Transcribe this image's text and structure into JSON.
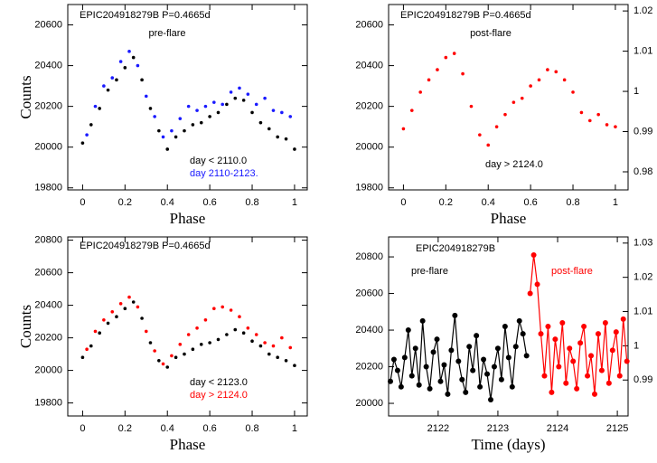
{
  "chart_data": [
    {
      "type": "scatter",
      "title": "EPIC204918279B P=0.4665d",
      "annotations": [
        "pre-flare"
      ],
      "xlabel": "Phase",
      "ylabel": "Counts",
      "xlim": [
        -0.07,
        1.06
      ],
      "ylim": [
        19790,
        20700
      ],
      "xticks": [
        0,
        0.2,
        0.4,
        0.6,
        0.8,
        1
      ],
      "yticks": [
        19800,
        20000,
        20200,
        20400,
        20600
      ],
      "series": [
        {
          "name": "day < 2110.0",
          "color": "#000000",
          "x": [
            0,
            0.04,
            0.08,
            0.12,
            0.16,
            0.2,
            0.24,
            0.28,
            0.32,
            0.36,
            0.4,
            0.44,
            0.48,
            0.52,
            0.56,
            0.6,
            0.64,
            0.68,
            0.72,
            0.76,
            0.8,
            0.84,
            0.88,
            0.92,
            0.96,
            1
          ],
          "values": [
            20020,
            20110,
            20190,
            20280,
            20330,
            20390,
            20440,
            20330,
            20190,
            20080,
            19990,
            20050,
            20080,
            20110,
            20120,
            20150,
            20170,
            20210,
            20240,
            20230,
            20170,
            20120,
            20090,
            20050,
            20040,
            19990
          ]
        },
        {
          "name": "day 2110-2123.",
          "color": "#1a1aff",
          "x": [
            0.02,
            0.06,
            0.1,
            0.14,
            0.18,
            0.22,
            0.26,
            0.3,
            0.34,
            0.38,
            0.42,
            0.46,
            0.5,
            0.54,
            0.58,
            0.62,
            0.66,
            0.7,
            0.74,
            0.78,
            0.82,
            0.86,
            0.9,
            0.94,
            0.98
          ],
          "values": [
            20060,
            20200,
            20300,
            20340,
            20420,
            20470,
            20400,
            20250,
            20150,
            20050,
            20080,
            20140,
            20200,
            20180,
            20200,
            20220,
            20210,
            20270,
            20290,
            20260,
            20210,
            20240,
            20180,
            20170,
            20150
          ]
        }
      ]
    },
    {
      "type": "scatter",
      "title": "EPIC204918279B P=0.4665d",
      "annotations": [
        "post-flare",
        "day > 2124.0"
      ],
      "xlabel": "Phase",
      "xlim": [
        -0.07,
        1.06
      ],
      "ylim": [
        19790,
        20700
      ],
      "xticks": [
        0,
        0.2,
        0.4,
        0.6,
        0.8,
        1
      ],
      "yticks": [
        19800,
        20000,
        20200,
        20400,
        20600
      ],
      "y2lim": [
        0.9755,
        1.0216
      ],
      "y2ticks": [
        0.98,
        0.99,
        1,
        1.01,
        1.02
      ],
      "series": [
        {
          "color": "#ff0000",
          "x": [
            0,
            0.04,
            0.08,
            0.12,
            0.16,
            0.2,
            0.24,
            0.28,
            0.32,
            0.36,
            0.4,
            0.44,
            0.48,
            0.52,
            0.56,
            0.6,
            0.64,
            0.68,
            0.72,
            0.76,
            0.8,
            0.84,
            0.88,
            0.92,
            0.96,
            1
          ],
          "values": [
            20090,
            20180,
            20270,
            20330,
            20380,
            20440,
            20460,
            20360,
            20200,
            20060,
            20010,
            20100,
            20160,
            20220,
            20240,
            20300,
            20330,
            20380,
            20370,
            20330,
            20270,
            20170,
            20130,
            20160,
            20110,
            20100
          ]
        }
      ]
    },
    {
      "type": "scatter",
      "title": "EPIC204918279B P=0.4665d",
      "xlabel": "Phase",
      "ylabel": "Counts",
      "xlim": [
        -0.07,
        1.06
      ],
      "ylim": [
        19720,
        20820
      ],
      "xticks": [
        0,
        0.2,
        0.4,
        0.6,
        0.8,
        1
      ],
      "yticks": [
        19800,
        20000,
        20200,
        20400,
        20600,
        20800
      ],
      "series": [
        {
          "name": "day < 2123.0",
          "color": "#000000",
          "x": [
            0,
            0.04,
            0.08,
            0.12,
            0.16,
            0.2,
            0.24,
            0.28,
            0.32,
            0.36,
            0.4,
            0.44,
            0.48,
            0.52,
            0.56,
            0.6,
            0.64,
            0.68,
            0.72,
            0.76,
            0.8,
            0.84,
            0.88,
            0.92,
            0.96,
            1
          ],
          "values": [
            20080,
            20150,
            20230,
            20290,
            20330,
            20380,
            20420,
            20320,
            20170,
            20060,
            20020,
            20080,
            20100,
            20130,
            20160,
            20170,
            20190,
            20220,
            20250,
            20230,
            20180,
            20150,
            20100,
            20080,
            20060,
            20030
          ]
        },
        {
          "name": "day > 2124.0",
          "color": "#ff0000",
          "x": [
            0.02,
            0.06,
            0.1,
            0.14,
            0.18,
            0.22,
            0.26,
            0.3,
            0.34,
            0.38,
            0.42,
            0.46,
            0.5,
            0.54,
            0.58,
            0.62,
            0.66,
            0.7,
            0.74,
            0.78,
            0.82,
            0.86,
            0.9,
            0.94,
            0.98
          ],
          "values": [
            20130,
            20240,
            20310,
            20360,
            20410,
            20450,
            20390,
            20240,
            20120,
            20040,
            20090,
            20160,
            20220,
            20260,
            20310,
            20380,
            20390,
            20370,
            20330,
            20260,
            20220,
            20170,
            20150,
            20200,
            20140
          ]
        }
      ]
    },
    {
      "type": "line",
      "title": "EPIC204918279B",
      "xlabel": "Time (days)",
      "xlim": [
        2121.17,
        2125.18
      ],
      "ylim": [
        19931,
        20909
      ],
      "xticks": [
        2122,
        2123,
        2124,
        2125
      ],
      "yticks": [
        20000,
        20200,
        20400,
        20600,
        20800
      ],
      "y2lim": [
        0.9795,
        1.0318
      ],
      "y2ticks": [
        0.99,
        1,
        1.01,
        1.02,
        1.03
      ],
      "series": [
        {
          "name": "pre-flare",
          "color": "#000000",
          "x": [
            2121.2,
            2121.26,
            2121.32,
            2121.38,
            2121.44,
            2121.5,
            2121.56,
            2121.62,
            2121.68,
            2121.74,
            2121.8,
            2121.86,
            2121.92,
            2121.98,
            2122.04,
            2122.1,
            2122.16,
            2122.22,
            2122.28,
            2122.34,
            2122.4,
            2122.46,
            2122.52,
            2122.58,
            2122.64,
            2122.7,
            2122.76,
            2122.82,
            2122.88,
            2122.94,
            2123.0,
            2123.06,
            2123.12,
            2123.18,
            2123.24,
            2123.3,
            2123.36,
            2123.42,
            2123.48
          ],
          "values": [
            20120,
            20240,
            20180,
            20090,
            20250,
            20400,
            20150,
            20300,
            20100,
            20450,
            20200,
            20080,
            20280,
            20350,
            20120,
            20210,
            20050,
            20290,
            20480,
            20230,
            20130,
            20060,
            20310,
            20180,
            20370,
            20090,
            20240,
            20160,
            20020,
            20200,
            20300,
            20130,
            20420,
            20250,
            20090,
            20310,
            20450,
            20380,
            20260
          ]
        },
        {
          "name": "post-flare",
          "color": "#ff0000",
          "x": [
            2123.54,
            2123.6,
            2123.66,
            2123.72,
            2123.78,
            2123.84,
            2123.9,
            2123.96,
            2124.02,
            2124.08,
            2124.14,
            2124.2,
            2124.26,
            2124.32,
            2124.38,
            2124.44,
            2124.5,
            2124.56,
            2124.62,
            2124.68,
            2124.74,
            2124.8,
            2124.86,
            2124.92,
            2124.98,
            2125.04,
            2125.1,
            2125.16
          ],
          "values": [
            20600,
            20810,
            20650,
            20380,
            20150,
            20420,
            20060,
            20350,
            20200,
            20440,
            20110,
            20300,
            20230,
            20080,
            20330,
            20420,
            20150,
            20260,
            20050,
            20380,
            20180,
            20440,
            20110,
            20290,
            20390,
            20150,
            20460,
            20230
          ]
        }
      ]
    }
  ]
}
